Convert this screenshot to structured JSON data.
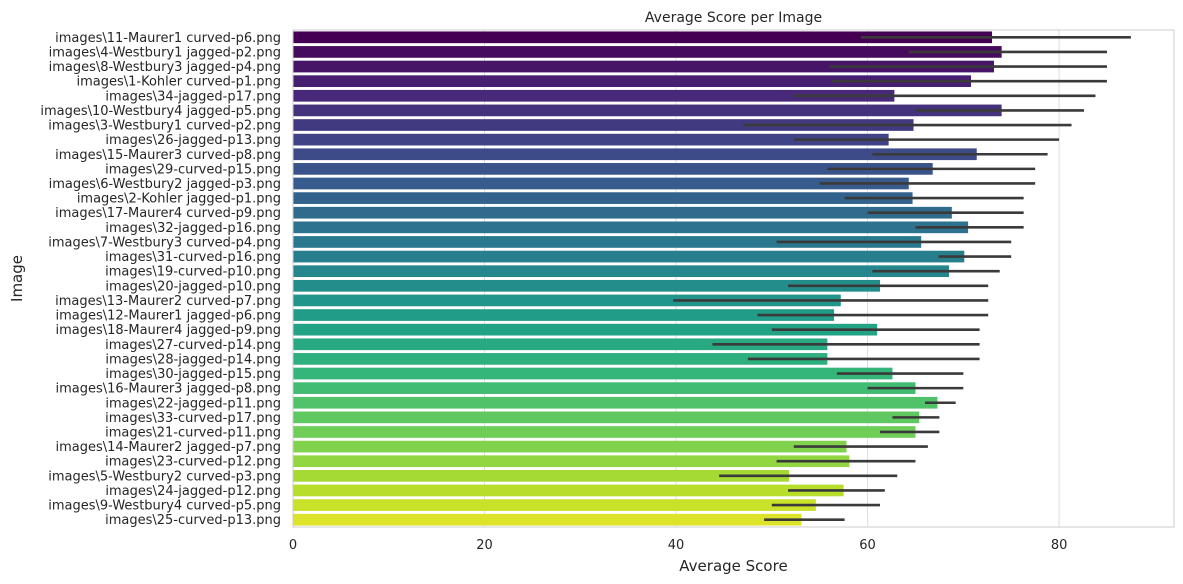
{
  "chart_data": {
    "type": "bar",
    "orientation": "horizontal",
    "title": "Average Score per Image",
    "xlabel": "Average Score",
    "ylabel": "Image",
    "xlim": [
      0,
      92
    ],
    "xticks": [
      0,
      20,
      40,
      60,
      80
    ],
    "grid": true,
    "colormap": "viridis",
    "errorbar_color": "#3a3a3a",
    "categories": [
      "images\\11-Maurer1 curved-p6.png",
      "images\\4-Westbury1 jagged-p2.png",
      "images\\8-Westbury3 jagged-p4.png",
      "images\\1-Kohler curved-p1.png",
      "images\\34-jagged-p17.png",
      "images\\10-Westbury4 jagged-p5.png",
      "images\\3-Westbury1 curved-p2.png",
      "images\\26-jagged-p13.png",
      "images\\15-Maurer3 curved-p8.png",
      "images\\29-curved-p15.png",
      "images\\6-Westbury2 jagged-p3.png",
      "images\\2-Kohler jagged-p1.png",
      "images\\17-Maurer4 curved-p9.png",
      "images\\32-jagged-p16.png",
      "images\\7-Westbury3 curved-p4.png",
      "images\\31-curved-p16.png",
      "images\\19-curved-p10.png",
      "images\\20-jagged-p10.png",
      "images\\13-Maurer2 curved-p7.png",
      "images\\12-Maurer1 jagged-p6.png",
      "images\\18-Maurer4 jagged-p9.png",
      "images\\27-curved-p14.png",
      "images\\28-jagged-p14.png",
      "images\\30-jagged-p15.png",
      "images\\16-Maurer3 jagged-p8.png",
      "images\\22-jagged-p11.png",
      "images\\33-curved-p17.png",
      "images\\21-curved-p11.png",
      "images\\14-Maurer2 jagged-p7.png",
      "images\\23-curved-p12.png",
      "images\\5-Westbury2 curved-p3.png",
      "images\\24-jagged-p12.png",
      "images\\9-Westbury4 curved-p5.png",
      "images\\25-curved-p13.png"
    ],
    "values": [
      73.0,
      74.0,
      73.2,
      70.8,
      62.8,
      74.0,
      64.8,
      62.2,
      71.4,
      66.8,
      64.3,
      64.7,
      68.8,
      70.5,
      65.6,
      70.1,
      68.5,
      61.3,
      57.2,
      56.5,
      61.0,
      55.8,
      55.8,
      62.6,
      65.0,
      67.3,
      65.4,
      65.0,
      57.8,
      58.1,
      51.8,
      57.5,
      54.6,
      53.1
    ],
    "ci_low": [
      59.3,
      64.3,
      56.0,
      56.3,
      52.2,
      65.0,
      47.0,
      52.3,
      60.5,
      55.8,
      55.0,
      57.6,
      60.0,
      65.0,
      50.5,
      67.4,
      60.5,
      51.7,
      39.7,
      48.5,
      50.0,
      43.8,
      47.5,
      56.8,
      60.0,
      66.0,
      62.6,
      61.3,
      52.3,
      50.5,
      44.5,
      51.7,
      50.0,
      49.2
    ],
    "ci_high": [
      87.5,
      85.0,
      85.0,
      85.0,
      83.8,
      82.6,
      81.3,
      80.0,
      78.8,
      77.5,
      77.5,
      76.3,
      76.3,
      76.3,
      75.0,
      75.0,
      73.8,
      72.6,
      72.6,
      72.6,
      71.7,
      71.7,
      71.7,
      70.0,
      70.0,
      69.2,
      67.5,
      67.5,
      66.3,
      65.0,
      63.1,
      61.8,
      61.3,
      57.6
    ]
  }
}
